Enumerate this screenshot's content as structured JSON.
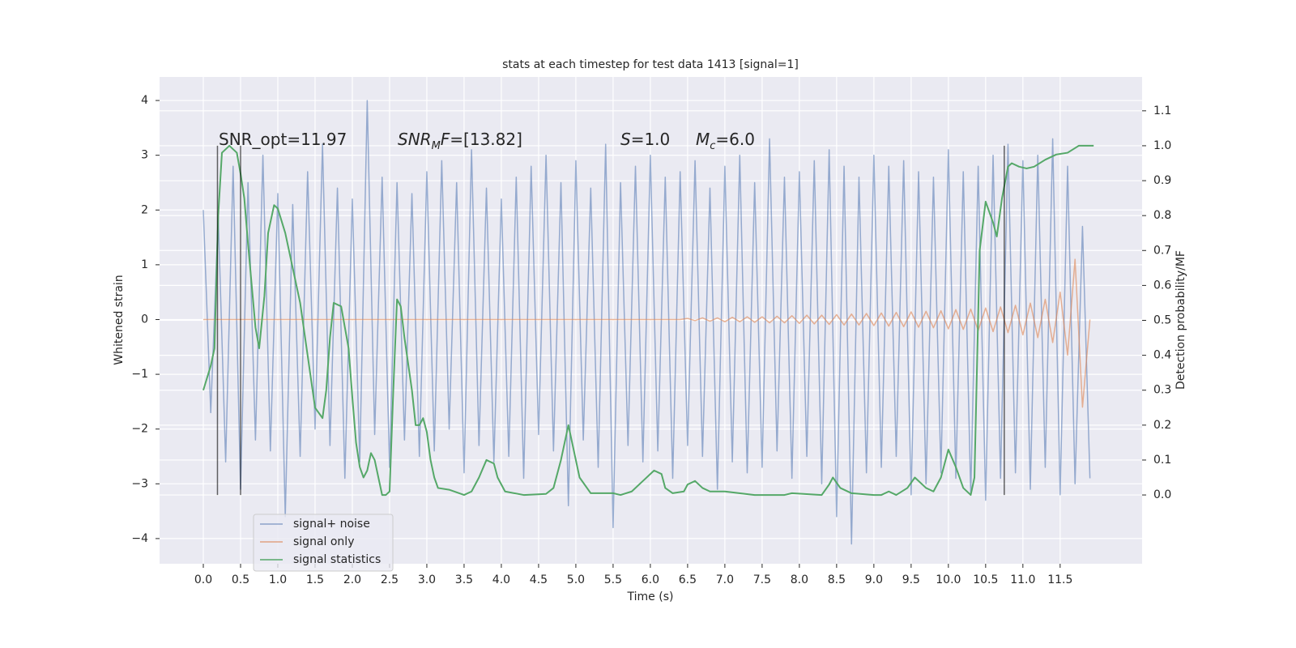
{
  "chart_data": {
    "type": "line",
    "title": "stats at each timestep for test data 1413 [signal=1]",
    "xlabel": "Time (s)",
    "ylabel": "Whitened strain",
    "y2label": "Detection probability/MF",
    "xlim": [
      -0.587,
      12.6
    ],
    "ylim": [
      -4.46,
      4.43
    ],
    "y2lim": [
      -0.197,
      1.197
    ],
    "grid": true,
    "legend": "lower left",
    "xticks": [
      {
        "value": 0,
        "label": "0.0"
      },
      {
        "value": 0.5,
        "label": "0.5"
      },
      {
        "value": 1,
        "label": "1.0"
      },
      {
        "value": 1.5,
        "label": "1.5"
      },
      {
        "value": 2,
        "label": "2.0"
      },
      {
        "value": 2.5,
        "label": "2.5"
      },
      {
        "value": 3,
        "label": "3.0"
      },
      {
        "value": 3.5,
        "label": "3.5"
      },
      {
        "value": 4,
        "label": "4.0"
      },
      {
        "value": 4.5,
        "label": "4.5"
      },
      {
        "value": 5,
        "label": "5.0"
      },
      {
        "value": 5.5,
        "label": "5.5"
      },
      {
        "value": 6,
        "label": "6.0"
      },
      {
        "value": 6.5,
        "label": "6.5"
      },
      {
        "value": 7,
        "label": "7.0"
      },
      {
        "value": 7.5,
        "label": "7.5"
      },
      {
        "value": 8,
        "label": "8.0"
      },
      {
        "value": 8.5,
        "label": "8.5"
      },
      {
        "value": 9,
        "label": "9.0"
      },
      {
        "value": 9.5,
        "label": "9.5"
      },
      {
        "value": 10,
        "label": "10.0"
      },
      {
        "value": 10.5,
        "label": "10.5"
      },
      {
        "value": 11,
        "label": "11.0"
      },
      {
        "value": 11.5,
        "label": "11.5"
      }
    ],
    "yticks": [
      {
        "value": -4,
        "label": "−4"
      },
      {
        "value": -3,
        "label": "−3"
      },
      {
        "value": -2,
        "label": "−2"
      },
      {
        "value": -1,
        "label": "−1"
      },
      0,
      1,
      2,
      3,
      4
    ],
    "y2ticks": [
      {
        "value": 0,
        "label": "0.0"
      },
      {
        "value": 0.1,
        "label": "0.1"
      },
      {
        "value": 0.2,
        "label": "0.2"
      },
      {
        "value": 0.3,
        "label": "0.3"
      },
      {
        "value": 0.4,
        "label": "0.4"
      },
      {
        "value": 0.5,
        "label": "0.5"
      },
      {
        "value": 0.6,
        "label": "0.6"
      },
      {
        "value": 0.7,
        "label": "0.7"
      },
      {
        "value": 0.8,
        "label": "0.8"
      },
      {
        "value": 0.9,
        "label": "0.9"
      },
      {
        "value": 1,
        "label": "1.0"
      },
      {
        "value": 1.1,
        "label": "1.1"
      }
    ],
    "x": [
      0,
      0.1,
      0.2,
      0.3,
      0.4,
      0.5,
      0.6,
      0.7,
      0.8,
      0.9,
      1,
      1.1,
      1.2,
      1.3,
      1.4,
      1.5,
      1.6,
      1.7,
      1.8,
      1.9,
      2,
      2.1,
      2.2,
      2.3,
      2.4,
      2.5,
      2.6,
      2.7,
      2.8,
      2.9,
      3,
      3.1,
      3.2,
      3.3,
      3.4,
      3.5,
      3.6,
      3.7,
      3.8,
      3.9,
      4,
      4.1,
      4.2,
      4.3,
      4.4,
      4.5,
      4.6,
      4.7,
      4.8,
      4.9,
      5,
      5.1,
      5.2,
      5.3,
      5.4,
      5.5,
      5.6,
      5.7,
      5.8,
      5.9,
      6,
      6.1,
      6.2,
      6.3,
      6.4,
      6.5,
      6.6,
      6.7,
      6.8,
      6.9,
      7,
      7.1,
      7.2,
      7.3,
      7.4,
      7.5,
      7.6,
      7.7,
      7.8,
      7.9,
      8,
      8.1,
      8.2,
      8.3,
      8.4,
      8.5,
      8.6,
      8.7,
      8.8,
      8.9,
      9,
      9.1,
      9.2,
      9.3,
      9.4,
      9.5,
      9.6,
      9.7,
      9.8,
      9.9,
      10,
      10.1,
      10.2,
      10.3,
      10.4,
      10.5,
      10.6,
      10.7,
      10.8,
      10.9,
      11,
      11.1,
      11.2,
      11.3,
      11.4,
      11.5,
      11.6,
      11.7,
      11.8,
      11.9
    ],
    "series": [
      {
        "name": "signal+ noise",
        "color": "#4c72b0",
        "values": [
          2.0,
          -1.7,
          1.9,
          -2.6,
          2.8,
          -3.1,
          2.5,
          -2.2,
          3.0,
          -2.4,
          2.3,
          -3.6,
          2.1,
          -2.5,
          2.7,
          -2.0,
          3.2,
          -2.3,
          2.4,
          -2.9,
          2.2,
          -2.6,
          4.0,
          -2.1,
          2.6,
          -2.7,
          2.5,
          -2.2,
          2.3,
          -2.5,
          2.7,
          -2.4,
          2.9,
          -2.0,
          2.5,
          -2.8,
          3.1,
          -2.3,
          2.4,
          -2.6,
          2.2,
          -2.5,
          2.6,
          -2.9,
          2.8,
          -2.1,
          3.0,
          -2.4,
          2.5,
          -3.4,
          2.9,
          -2.2,
          2.4,
          -2.7,
          3.2,
          -3.8,
          2.5,
          -2.3,
          2.8,
          -2.6,
          3.0,
          -2.4,
          2.6,
          -2.9,
          2.7,
          -2.3,
          2.9,
          -2.5,
          2.4,
          -3.1,
          2.8,
          -2.6,
          3.0,
          -2.8,
          2.5,
          -2.7,
          3.3,
          -2.4,
          2.6,
          -2.9,
          2.7,
          -2.5,
          2.9,
          -3.0,
          3.1,
          -3.6,
          2.8,
          -4.1,
          2.6,
          -2.8,
          3.0,
          -2.7,
          2.8,
          -2.5,
          2.9,
          -3.2,
          2.7,
          -3.0,
          2.6,
          -2.8,
          3.1,
          -2.9,
          2.7,
          -3.2,
          2.8,
          -3.3,
          3.0,
          -2.9,
          3.2,
          -2.8,
          2.9,
          -3.1,
          3.0,
          -2.7,
          3.3,
          -3.2,
          2.8,
          -3.0,
          1.7,
          -2.9
        ]
      },
      {
        "name": "signal only",
        "color": "#dd8452",
        "values": [
          0,
          0,
          0,
          0,
          0,
          0,
          0,
          0,
          0,
          0,
          0,
          0,
          0,
          0,
          0,
          0,
          0,
          0,
          0,
          0,
          0,
          0,
          0,
          0,
          0,
          0,
          0,
          0,
          0,
          0,
          0,
          0,
          0,
          0,
          0,
          0,
          0,
          0,
          0,
          0,
          0,
          0,
          0,
          0,
          0,
          0,
          0,
          0,
          0,
          0,
          0,
          0,
          0,
          0,
          0,
          0,
          0,
          0,
          0,
          0,
          0,
          0,
          0,
          0,
          0,
          0.02,
          -0.02,
          0.03,
          -0.03,
          0.03,
          -0.04,
          0.04,
          -0.04,
          0.05,
          -0.05,
          0.05,
          -0.06,
          0.06,
          -0.06,
          0.07,
          -0.07,
          0.08,
          -0.08,
          0.08,
          -0.09,
          0.09,
          -0.1,
          0.1,
          -0.1,
          0.11,
          -0.11,
          0.12,
          -0.12,
          0.13,
          -0.13,
          0.14,
          -0.14,
          0.15,
          -0.15,
          0.16,
          -0.17,
          0.18,
          -0.18,
          0.19,
          -0.2,
          0.21,
          -0.22,
          0.23,
          -0.24,
          0.26,
          -0.28,
          0.3,
          -0.33,
          0.37,
          -0.42,
          0.5,
          -0.65,
          1.1,
          -1.6,
          0
        ]
      },
      {
        "name": "signal statistics",
        "color": "#55a868",
        "axis": "y2",
        "x": [
          0,
          0.1,
          0.15,
          0.2,
          0.25,
          0.35,
          0.45,
          0.5,
          0.55,
          0.6,
          0.7,
          0.75,
          0.82,
          0.87,
          0.95,
          1.0,
          1.1,
          1.2,
          1.3,
          1.4,
          1.5,
          1.6,
          1.65,
          1.7,
          1.75,
          1.85,
          1.95,
          2.0,
          2.05,
          2.1,
          2.15,
          2.2,
          2.25,
          2.3,
          2.35,
          2.4,
          2.45,
          2.5,
          2.55,
          2.6,
          2.65,
          2.7,
          2.8,
          2.85,
          2.9,
          2.95,
          3.0,
          3.05,
          3.1,
          3.15,
          3.3,
          3.5,
          3.6,
          3.7,
          3.8,
          3.9,
          3.95,
          4.05,
          4.3,
          4.6,
          4.7,
          4.8,
          4.9,
          4.95,
          5.05,
          5.2,
          5.5,
          5.6,
          5.75,
          5.9,
          6.05,
          6.15,
          6.2,
          6.3,
          6.45,
          6.5,
          6.6,
          6.7,
          6.8,
          7.0,
          7.4,
          7.8,
          7.9,
          8.3,
          8.4,
          8.45,
          8.55,
          8.7,
          9.0,
          9.1,
          9.2,
          9.3,
          9.45,
          9.55,
          9.7,
          9.8,
          9.9,
          10.0,
          10.1,
          10.2,
          10.3,
          10.35,
          10.42,
          10.5,
          10.6,
          10.65,
          10.72,
          10.8,
          10.85,
          10.95,
          11.05,
          11.15,
          11.3,
          11.45,
          11.6,
          11.75,
          11.95
        ],
        "values": [
          0.3,
          0.37,
          0.42,
          0.8,
          0.98,
          1.0,
          0.98,
          0.92,
          0.85,
          0.72,
          0.48,
          0.42,
          0.57,
          0.75,
          0.83,
          0.82,
          0.75,
          0.65,
          0.55,
          0.4,
          0.25,
          0.22,
          0.3,
          0.45,
          0.55,
          0.54,
          0.42,
          0.28,
          0.15,
          0.08,
          0.05,
          0.07,
          0.12,
          0.1,
          0.05,
          0.0,
          0.0,
          0.01,
          0.3,
          0.56,
          0.54,
          0.45,
          0.3,
          0.2,
          0.2,
          0.22,
          0.18,
          0.1,
          0.05,
          0.02,
          0.015,
          0.0,
          0.01,
          0.05,
          0.1,
          0.09,
          0.05,
          0.01,
          0.0,
          0.003,
          0.02,
          0.1,
          0.2,
          0.15,
          0.05,
          0.005,
          0.005,
          0.0,
          0.01,
          0.04,
          0.07,
          0.06,
          0.02,
          0.005,
          0.01,
          0.03,
          0.04,
          0.02,
          0.01,
          0.01,
          0.0,
          0.0,
          0.005,
          0.0,
          0.03,
          0.05,
          0.02,
          0.005,
          0.0,
          0.0,
          0.01,
          0.0,
          0.02,
          0.05,
          0.02,
          0.01,
          0.05,
          0.13,
          0.08,
          0.02,
          0.0,
          0.05,
          0.7,
          0.84,
          0.78,
          0.74,
          0.85,
          0.94,
          0.95,
          0.94,
          0.935,
          0.94,
          0.96,
          0.975,
          0.98,
          1.0,
          1.0
        ]
      }
    ],
    "vlines": [
      0.19,
      0.5,
      10.75
    ],
    "vline_span": [
      0,
      1
    ],
    "annotations": [
      [
        {
          "text": "SNR_opt=11.97"
        }
      ],
      [
        {
          "text": "SNR",
          "italic": true
        },
        {
          "text": "M",
          "italic": true,
          "sub": true
        },
        {
          "text": "F",
          "italic": true
        },
        {
          "text": "=[13.82]"
        }
      ],
      [
        {
          "text": "S",
          "italic": true
        },
        {
          "text": "=1.0"
        }
      ],
      [
        {
          "text": "M",
          "italic": true
        },
        {
          "text": "c",
          "italic": true,
          "sub": true
        },
        {
          "text": "=6.0"
        }
      ]
    ]
  }
}
